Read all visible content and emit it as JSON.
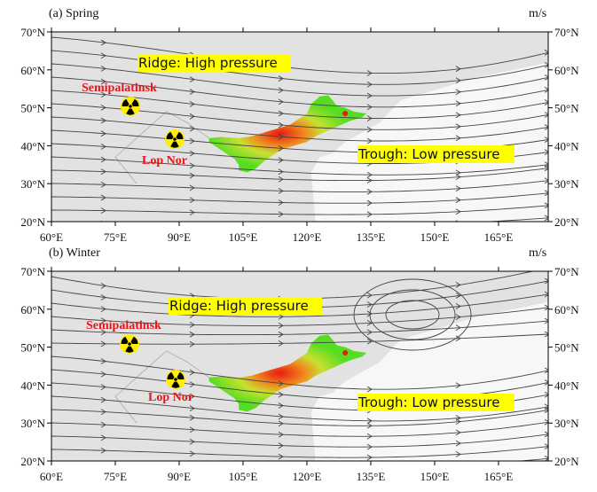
{
  "figure": {
    "unit_label": "m/s",
    "lon_ticks": [
      "60°E",
      "75°E",
      "90°E",
      "105°E",
      "120°E",
      "135°E",
      "150°E",
      "165°E"
    ],
    "lat_ticks": [
      "70°N",
      "60°N",
      "50°N",
      "40°N",
      "30°N",
      "20°N"
    ],
    "panels": [
      {
        "title": "(a) Spring",
        "ridge_label": "Ridge: High pressure",
        "trough_label": "Trough: Low pressure",
        "site_1": "Semipalatinsk",
        "site_2": "Lop Nor"
      },
      {
        "title": "(b) Winter",
        "ridge_label": "Ridge: High pressure",
        "trough_label": "Trough: Low pressure",
        "site_1": "Semipalatinsk",
        "site_2": "Lop Nor"
      }
    ],
    "icons": {
      "site_marker": "radiation-hazard-icon"
    },
    "colors": {
      "land": "#e2e2e2",
      "ocean": "#f7f7f7",
      "streamline": "#444444",
      "label_highlight": "#ffff00",
      "site_text": "#e8141c",
      "field_low": "#55dd22",
      "field_high": "#e81a10"
    }
  }
}
